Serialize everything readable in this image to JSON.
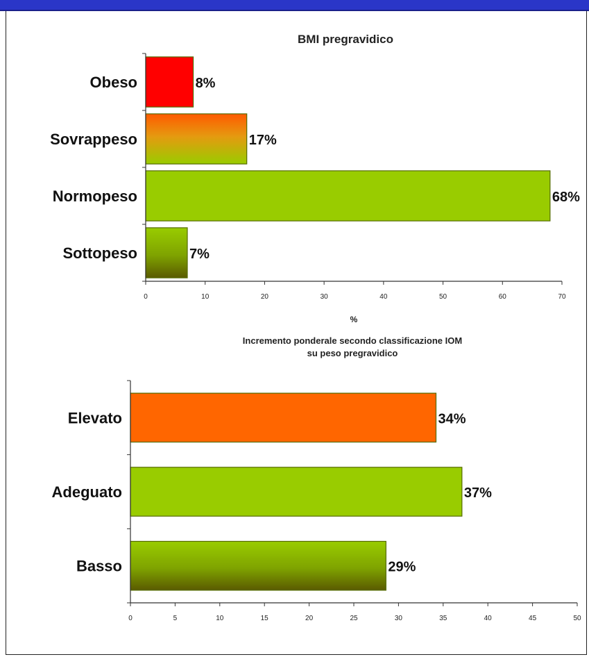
{
  "chart_data": [
    {
      "type": "bar",
      "orientation": "horizontal",
      "title": "BMI pregravidico",
      "xlabel": "%",
      "ylabel": "",
      "categories": [
        "Obeso",
        "Sovrappeso",
        "Normopeso",
        "Sottopeso"
      ],
      "values": [
        8,
        17,
        68,
        7
      ],
      "value_labels": [
        "8%",
        "17%",
        "68%",
        "7%"
      ],
      "xlim": [
        0,
        70
      ],
      "xticks": [
        "0",
        "10",
        "20",
        "30",
        "40",
        "50",
        "60",
        "70"
      ],
      "colors": [
        "#ff0000",
        "gradient-orange-green",
        "#99cc00",
        "gradient-green-olive"
      ],
      "grid": false
    },
    {
      "type": "bar",
      "orientation": "horizontal",
      "title": "Incremento ponderale secondo classificazione IOM su peso pregravidico",
      "title_lines": [
        "Incremento ponderale secondo classificazione IOM",
        "su peso pregravidico"
      ],
      "xlabel": "",
      "ylabel": "",
      "categories": [
        "Elevato",
        "Adeguato",
        "Basso"
      ],
      "values": [
        34.2,
        37.1,
        28.6
      ],
      "value_labels": [
        "34%",
        "37%",
        "29%"
      ],
      "xlim": [
        0,
        50
      ],
      "xticks": [
        "0",
        "5",
        "10",
        "15",
        "20",
        "25",
        "30",
        "35",
        "40",
        "45",
        "50"
      ],
      "colors": [
        "#ff6600",
        "#99cc00",
        "gradient-green-olive"
      ],
      "grid": false
    }
  ]
}
